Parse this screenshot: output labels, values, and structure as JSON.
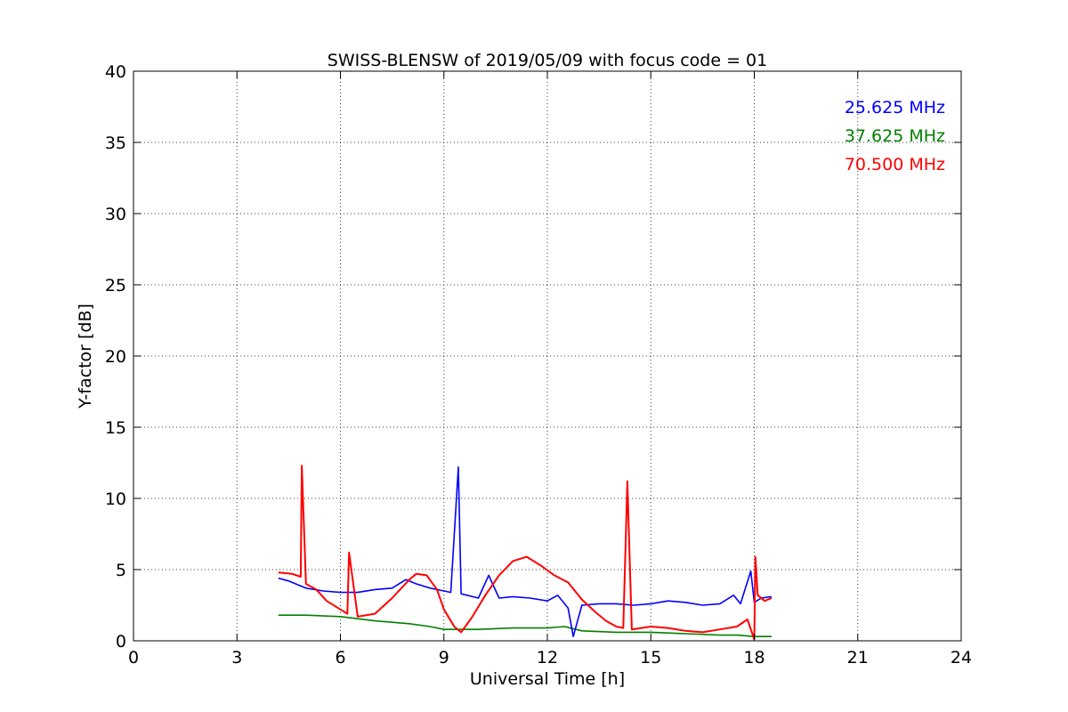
{
  "chart_data": {
    "type": "line",
    "title": "SWISS-BLENSW of 2019/05/09 with focus code = 01",
    "xlabel": "Universal Time [h]",
    "ylabel": "Y-factor [dB]",
    "xlim": [
      0,
      24
    ],
    "ylim": [
      0,
      40
    ],
    "xticks": [
      0,
      3,
      6,
      9,
      12,
      15,
      18,
      21,
      24
    ],
    "yticks": [
      0,
      5,
      10,
      15,
      20,
      25,
      30,
      35,
      40
    ],
    "grid": true,
    "legend": "top-right",
    "series": [
      {
        "name": "25.625 MHz",
        "color": "#0000ff",
        "x": [
          4.2,
          4.5,
          4.8,
          5.0,
          5.5,
          6.0,
          6.5,
          7.0,
          7.5,
          7.9,
          8.2,
          8.6,
          9.0,
          9.2,
          9.42,
          9.5,
          10.0,
          10.3,
          10.6,
          11.0,
          11.5,
          12.0,
          12.3,
          12.6,
          12.75,
          13.0,
          13.5,
          14.0,
          14.5,
          15.0,
          15.5,
          16.0,
          16.5,
          17.0,
          17.4,
          17.6,
          17.9,
          18.0,
          18.2,
          18.5
        ],
        "y": [
          4.4,
          4.2,
          3.9,
          3.7,
          3.5,
          3.4,
          3.4,
          3.6,
          3.7,
          4.3,
          4.0,
          3.7,
          3.5,
          3.4,
          12.2,
          3.3,
          3.0,
          4.6,
          3.0,
          3.1,
          3.0,
          2.8,
          3.2,
          2.3,
          0.3,
          2.5,
          2.6,
          2.6,
          2.5,
          2.6,
          2.8,
          2.7,
          2.5,
          2.6,
          3.2,
          2.6,
          4.9,
          2.7,
          3.0,
          3.1
        ]
      },
      {
        "name": "37.625 MHz",
        "color": "#008000",
        "x": [
          4.2,
          5.0,
          6.0,
          7.0,
          8.0,
          8.6,
          9.0,
          10.0,
          11.0,
          12.0,
          12.5,
          13.0,
          14.0,
          15.0,
          16.0,
          17.0,
          17.5,
          18.0,
          18.5
        ],
        "y": [
          1.8,
          1.8,
          1.7,
          1.4,
          1.2,
          1.0,
          0.8,
          0.8,
          0.9,
          0.9,
          1.0,
          0.7,
          0.6,
          0.6,
          0.5,
          0.4,
          0.4,
          0.3,
          0.3
        ]
      },
      {
        "name": "70.500 MHz",
        "color": "#ff0000",
        "x": [
          4.2,
          4.6,
          4.85,
          4.88,
          5.0,
          5.3,
          5.6,
          6.0,
          6.2,
          6.25,
          6.5,
          7.0,
          7.5,
          8.0,
          8.2,
          8.5,
          8.8,
          9.0,
          9.3,
          9.5,
          9.8,
          10.2,
          10.6,
          11.0,
          11.4,
          11.8,
          12.2,
          12.6,
          13.0,
          13.4,
          13.7,
          14.0,
          14.2,
          14.32,
          14.45,
          15.0,
          15.5,
          16.0,
          16.5,
          17.0,
          17.5,
          17.8,
          18.0,
          18.03,
          18.1,
          18.3,
          18.5
        ],
        "y": [
          4.8,
          4.7,
          4.5,
          12.3,
          4.0,
          3.6,
          2.8,
          2.2,
          1.9,
          6.2,
          1.7,
          1.9,
          3.0,
          4.3,
          4.7,
          4.6,
          3.6,
          2.2,
          1.0,
          0.6,
          1.6,
          3.2,
          4.6,
          5.6,
          5.9,
          5.3,
          4.6,
          4.1,
          2.9,
          2.0,
          1.4,
          1.0,
          0.9,
          11.2,
          0.8,
          1.0,
          0.9,
          0.7,
          0.6,
          0.8,
          1.0,
          1.5,
          0.1,
          5.9,
          3.2,
          2.8,
          3.0
        ]
      }
    ]
  }
}
